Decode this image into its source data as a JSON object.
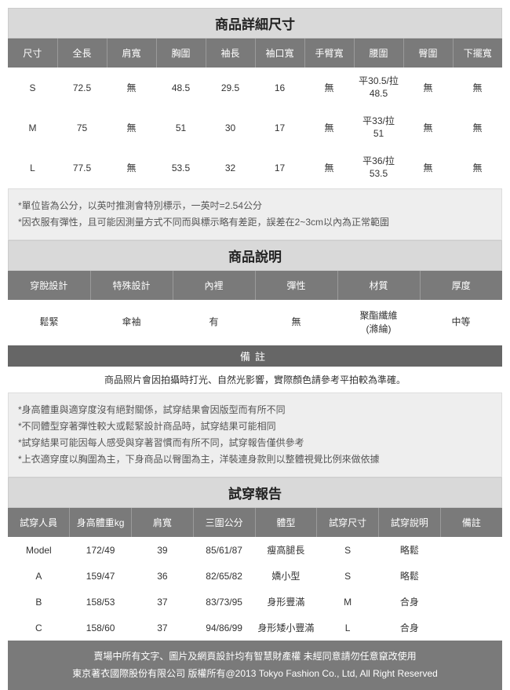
{
  "sizeSection": {
    "title": "商品詳細尺寸",
    "headers": [
      "尺寸",
      "全長",
      "肩寬",
      "胸圍",
      "袖長",
      "袖口寬",
      "手臂寬",
      "腰圍",
      "臀圍",
      "下擺寬"
    ],
    "rows": [
      [
        "S",
        "72.5",
        "無",
        "48.5",
        "29.5",
        "16",
        "無",
        "平30.5/拉48.5",
        "無",
        "無"
      ],
      [
        "M",
        "75",
        "無",
        "51",
        "30",
        "17",
        "無",
        "平33/拉51",
        "無",
        "無"
      ],
      [
        "L",
        "77.5",
        "無",
        "53.5",
        "32",
        "17",
        "無",
        "平36/拉53.5",
        "無",
        "無"
      ]
    ],
    "notes": [
      "*單位皆為公分，以英吋推測會特別標示，一英吋=2.54公分",
      "*因衣服有彈性，且可能因測量方式不同而與標示略有差距，誤差在2~3cm以內為正常範圍"
    ]
  },
  "descSection": {
    "title": "商品說明",
    "headers": [
      "穿脫設計",
      "特殊設計",
      "內裡",
      "彈性",
      "材質",
      "厚度"
    ],
    "row": [
      "鬆緊",
      "傘袖",
      "有",
      "無",
      "聚酯纖維\n(滌綸)",
      "中等"
    ],
    "sub": "備註",
    "subnote": "商品照片會因拍攝時打光、自然光影響，實際顏色請參考平拍較為準確。"
  },
  "tryNotes": [
    "*身高體重與適穿度沒有絕對關係，試穿結果會因版型而有所不同",
    "*不同體型穿著彈性較大或鬆緊設計商品時，試穿結果可能相同",
    "*試穿結果可能因每人感受與穿著習慣而有所不同，試穿報告僅供參考",
    "*上衣適穿度以胸圍為主，下身商品以臀圍為主，洋裝連身款則以整體視覺比例來做依據"
  ],
  "trySection": {
    "title": "試穿報告",
    "headers": [
      "試穿人員",
      "身高體重kg",
      "肩寬",
      "三圍公分",
      "體型",
      "試穿尺寸",
      "試穿說明",
      "備註"
    ],
    "rows": [
      [
        "Model",
        "172/49",
        "39",
        "85/61/87",
        "瘦高腿長",
        "S",
        "略鬆",
        ""
      ],
      [
        "A",
        "159/47",
        "36",
        "82/65/82",
        "嬌小型",
        "S",
        "略鬆",
        ""
      ],
      [
        "B",
        "158/53",
        "37",
        "83/73/95",
        "身形豐滿",
        "M",
        "合身",
        ""
      ],
      [
        "C",
        "158/60",
        "37",
        "94/86/99",
        "身形矮小豐滿",
        "L",
        "合身",
        ""
      ]
    ]
  },
  "footer": {
    "l1": "賣場中所有文字、圖片及網頁設計均有智慧財產權 未經同意請勿任意竄改使用",
    "l2": "東京著衣國際股份有限公司 版權所有@2013 Tokyo Fashion Co., Ltd, All Right Reserved"
  }
}
